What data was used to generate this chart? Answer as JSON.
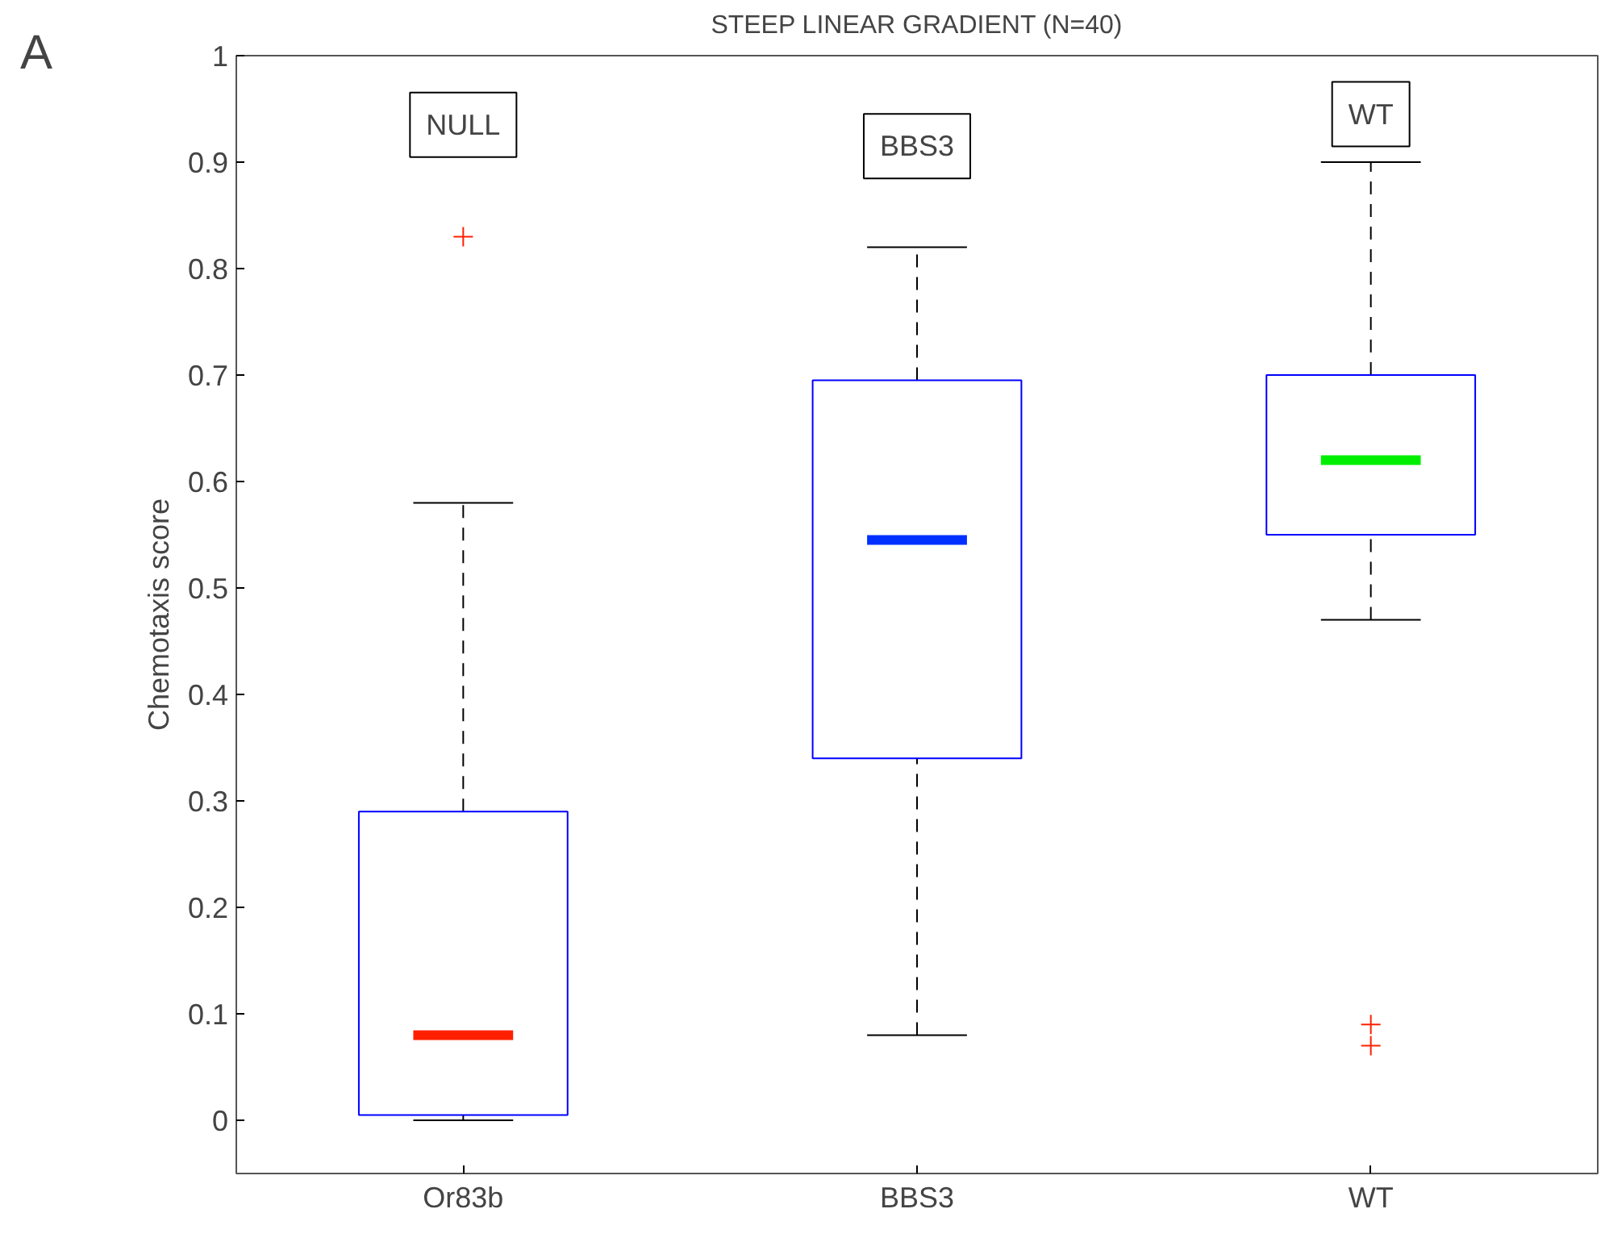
{
  "chart_data": {
    "type": "box",
    "title": "STEEP LINEAR GRADIENT (N=40)",
    "ylabel": "Chemotaxis score",
    "categories": [
      "Or83b",
      "BBS3",
      "WT"
    ],
    "color": "#0000ff",
    "boxes": [
      {
        "low": 0,
        "q1": 0.005,
        "median": 0.08,
        "q3": 0.29,
        "high": 0.58,
        "outliers": [
          0.83
        ]
      },
      {
        "low": 0.08,
        "q1": 0.34,
        "median": 0.545,
        "q3": 0.695,
        "high": 0.82
      },
      {
        "low": 0.47,
        "q1": 0.55,
        "median": 0.62,
        "q3": 0.7,
        "high": 0.9,
        "outliers": [
          0.09,
          0.07
        ]
      }
    ],
    "ylim": [
      -0.05,
      1
    ],
    "yticks": [
      0,
      0.1,
      0.2,
      0.3,
      0.4,
      0.5,
      0.6,
      0.7,
      0.8,
      0.9,
      1
    ],
    "grid": false,
    "annotations": [
      "A",
      "NULL",
      "BBS3",
      "WT"
    ]
  }
}
